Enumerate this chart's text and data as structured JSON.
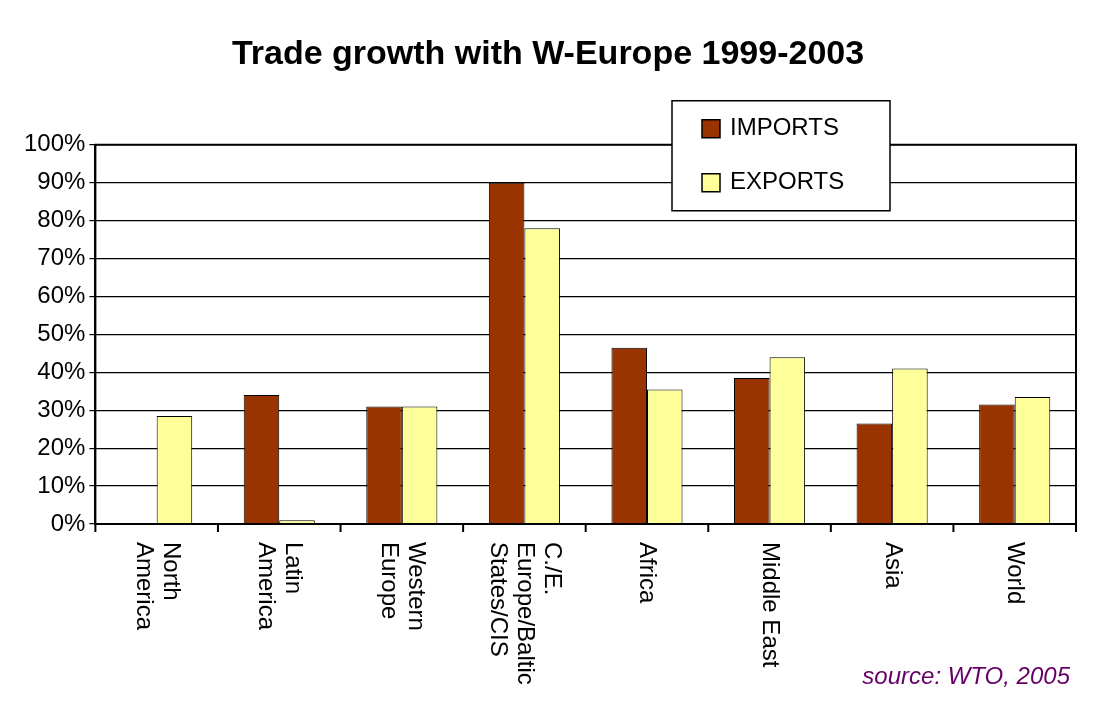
{
  "chart_data": {
    "type": "bar",
    "title": "Trade growth with W-Europe 1999-2003",
    "categories": [
      "North America",
      "Latin America",
      "Western Europe",
      "C./E. Europe/Baltic States/CIS",
      "Africa",
      "Middle East",
      "Asia",
      "World"
    ],
    "series": [
      {
        "name": "IMPORTS",
        "color": "#993300",
        "values": [
          null,
          34,
          31,
          90,
          46.5,
          38.5,
          26.5,
          31.5
        ]
      },
      {
        "name": "EXPORTS",
        "color": "#ffff99",
        "values": [
          28.5,
          1,
          31,
          78,
          35.5,
          44,
          41,
          33.5
        ]
      }
    ],
    "ylim": [
      0,
      100
    ],
    "yticks": [
      {
        "value": 0,
        "label": "0%"
      },
      {
        "value": 10,
        "label": "10%"
      },
      {
        "value": 20,
        "label": "20%"
      },
      {
        "value": 30,
        "label": "30%"
      },
      {
        "value": 40,
        "label": "40%"
      },
      {
        "value": 50,
        "label": "50%"
      },
      {
        "value": 60,
        "label": "60%"
      },
      {
        "value": 70,
        "label": "70%"
      },
      {
        "value": 80,
        "label": "80%"
      },
      {
        "value": 90,
        "label": "90%"
      },
      {
        "value": 100,
        "label": "100%"
      }
    ],
    "grid": "y",
    "legend": "top right",
    "annotations": [
      "source: WTO, 2005"
    ]
  }
}
